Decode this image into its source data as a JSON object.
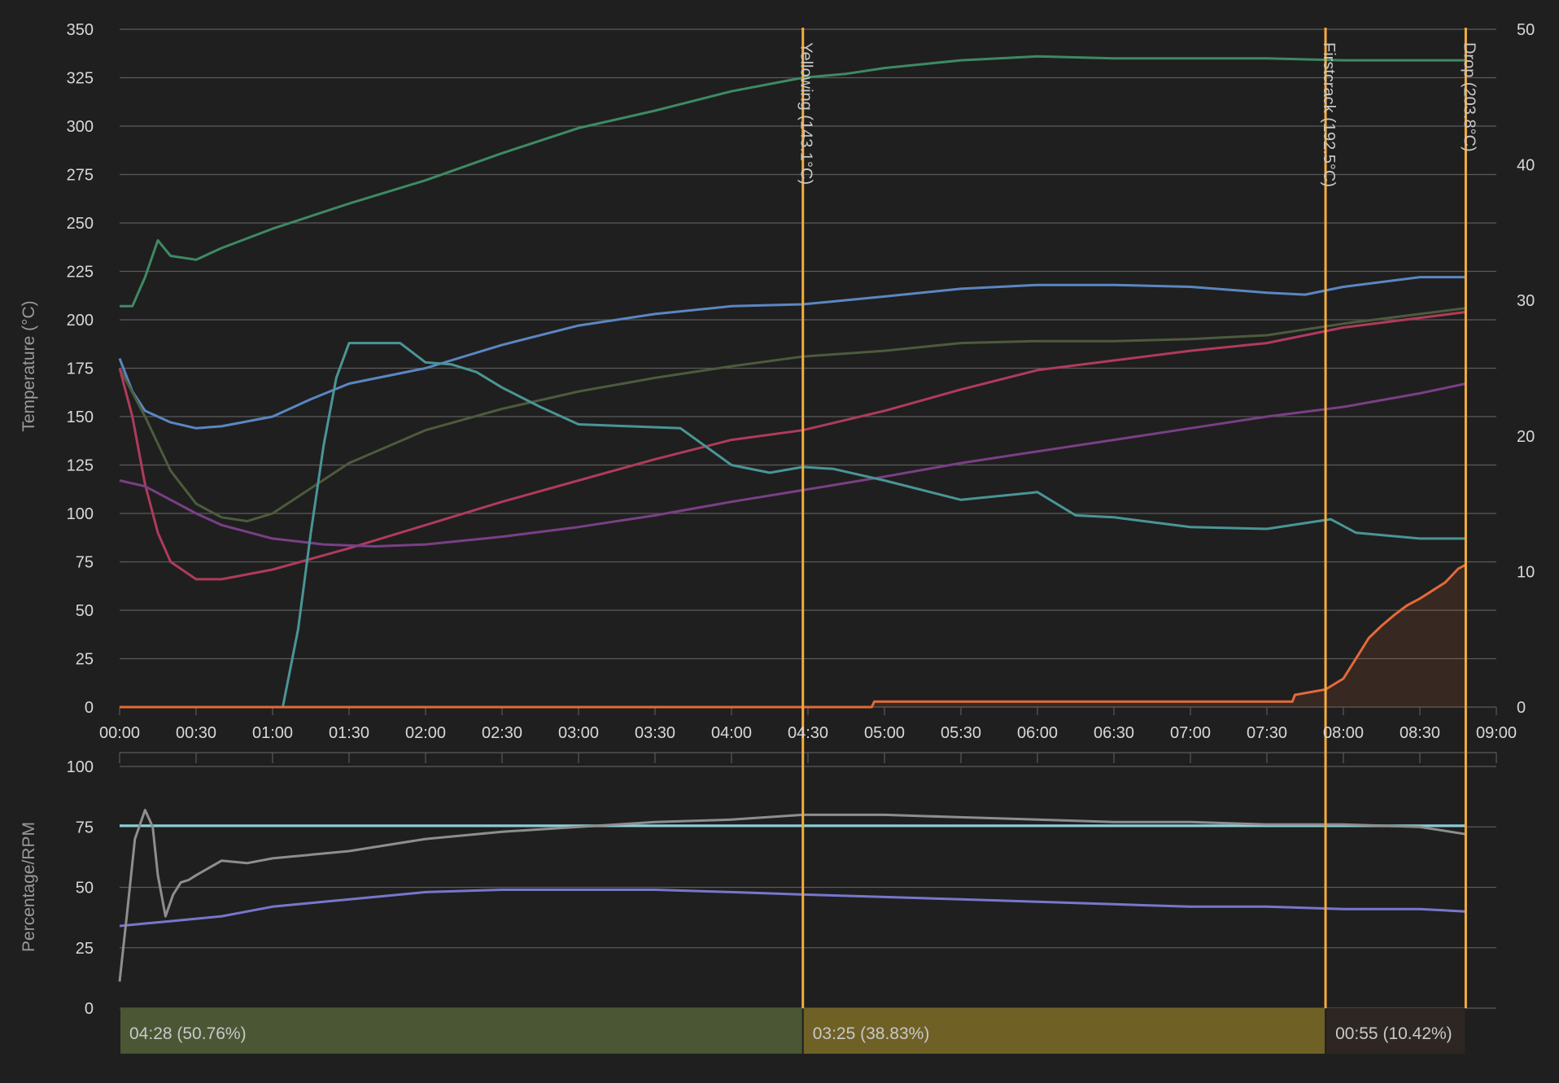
{
  "chart_data": [
    {
      "type": "line",
      "ylabel": "Temperature (°C)",
      "x_unit": "mm:ss",
      "xlim": [
        "00:00",
        "09:00"
      ],
      "ylim": [
        0,
        350
      ],
      "y2lim": [
        0,
        50
      ],
      "grid": true,
      "x_ticks": [
        "00:00",
        "00:30",
        "01:00",
        "01:30",
        "02:00",
        "02:30",
        "03:00",
        "03:30",
        "04:00",
        "04:30",
        "05:00",
        "05:30",
        "06:00",
        "06:30",
        "07:00",
        "07:30",
        "08:00",
        "08:30",
        "09:00"
      ],
      "y_ticks": [
        0,
        25,
        50,
        75,
        100,
        125,
        150,
        175,
        200,
        225,
        250,
        275,
        300,
        325,
        350
      ],
      "y2_ticks": [
        0,
        10,
        20,
        30,
        40,
        50
      ],
      "events": [
        {
          "time": "04:28",
          "label": "Yellowing (143.1°C)"
        },
        {
          "time": "07:53",
          "label": "Firstcrack (192.5°C)"
        },
        {
          "time": "08:48",
          "label": "Drop (203.8°C)"
        }
      ],
      "series": [
        {
          "color": "#3e8a63",
          "axis": "left",
          "x": [
            "00:00",
            "00:05",
            "00:10",
            "00:15",
            "00:20",
            "00:30",
            "00:40",
            "01:00",
            "01:30",
            "02:00",
            "02:30",
            "03:00",
            "03:30",
            "04:00",
            "04:28",
            "04:45",
            "05:00",
            "05:30",
            "06:00",
            "06:30",
            "07:00",
            "07:30",
            "08:00",
            "08:30",
            "08:48"
          ],
          "values": [
            207,
            207,
            222,
            241,
            233,
            231,
            237,
            247,
            260,
            272,
            286,
            299,
            308,
            318,
            325,
            327,
            330,
            334,
            336,
            335,
            335,
            335,
            334,
            334,
            334
          ]
        },
        {
          "color": "#5a87c2",
          "axis": "left",
          "x": [
            "00:00",
            "00:05",
            "00:10",
            "00:20",
            "00:30",
            "00:40",
            "01:00",
            "01:15",
            "01:30",
            "02:00",
            "02:30",
            "03:00",
            "03:30",
            "04:00",
            "04:28",
            "05:00",
            "05:30",
            "06:00",
            "06:30",
            "07:00",
            "07:30",
            "07:45",
            "08:00",
            "08:30",
            "08:48"
          ],
          "values": [
            180,
            163,
            153,
            147,
            144,
            145,
            150,
            159,
            167,
            175,
            187,
            197,
            203,
            207,
            208,
            212,
            216,
            218,
            218,
            217,
            214,
            213,
            217,
            222,
            222
          ]
        },
        {
          "color": "#4d5b3c",
          "axis": "left",
          "x": [
            "00:00",
            "00:10",
            "00:20",
            "00:30",
            "00:40",
            "00:50",
            "01:00",
            "01:15",
            "01:30",
            "02:00",
            "02:30",
            "03:00",
            "03:30",
            "04:00",
            "04:28",
            "05:00",
            "05:30",
            "06:00",
            "06:30",
            "07:00",
            "07:30",
            "08:00",
            "08:30",
            "08:48"
          ],
          "values": [
            175,
            150,
            122,
            105,
            98,
            96,
            100,
            113,
            126,
            143,
            154,
            163,
            170,
            176,
            181,
            184,
            188,
            189,
            189,
            190,
            192,
            198,
            203,
            206
          ]
        },
        {
          "color": "#b03b5c",
          "axis": "left",
          "x": [
            "00:00",
            "00:05",
            "00:10",
            "00:15",
            "00:20",
            "00:30",
            "00:40",
            "01:00",
            "01:30",
            "02:00",
            "02:30",
            "03:00",
            "03:30",
            "04:00",
            "04:28",
            "05:00",
            "05:30",
            "06:00",
            "06:30",
            "07:00",
            "07:30",
            "08:00",
            "08:30",
            "08:48"
          ],
          "values": [
            175,
            150,
            115,
            90,
            75,
            66,
            66,
            71,
            82,
            94,
            106,
            117,
            128,
            138,
            143,
            153,
            164,
            174,
            179,
            184,
            188,
            196,
            201,
            204
          ]
        },
        {
          "color": "#7a3f86",
          "axis": "left",
          "x": [
            "00:00",
            "00:10",
            "00:20",
            "00:30",
            "00:40",
            "01:00",
            "01:20",
            "01:40",
            "02:00",
            "02:30",
            "03:00",
            "03:30",
            "04:00",
            "04:28",
            "05:00",
            "05:30",
            "06:00",
            "06:30",
            "07:00",
            "07:30",
            "08:00",
            "08:30",
            "08:48"
          ],
          "values": [
            117,
            114,
            107,
            100,
            94,
            87,
            84,
            83,
            84,
            88,
            93,
            99,
            106,
            112,
            119,
            126,
            132,
            138,
            144,
            150,
            155,
            162,
            167
          ]
        },
        {
          "color": "#4a9596",
          "axis": "left",
          "x": [
            "01:04",
            "01:10",
            "01:15",
            "01:20",
            "01:25",
            "01:30",
            "01:40",
            "01:50",
            "02:00",
            "02:10",
            "02:20",
            "02:30",
            "02:45",
            "03:00",
            "03:20",
            "03:40",
            "04:00",
            "04:15",
            "04:28",
            "04:40",
            "05:00",
            "05:30",
            "06:00",
            "06:15",
            "06:30",
            "07:00",
            "07:30",
            "07:45",
            "07:55",
            "08:05",
            "08:30",
            "08:48"
          ],
          "values": [
            0,
            40,
            90,
            135,
            170,
            188,
            188,
            188,
            178,
            177,
            173,
            165,
            155,
            146,
            145,
            144,
            125,
            121,
            124,
            123,
            117,
            107,
            111,
            99,
            98,
            93,
            92,
            95,
            97,
            90,
            87,
            87
          ]
        },
        {
          "color": "#e36a3a",
          "axis": "right",
          "x": [
            "00:00",
            "04:55",
            "04:56",
            "07:30",
            "07:31",
            "07:40",
            "07:41",
            "07:53",
            "08:00",
            "08:05",
            "08:10",
            "08:15",
            "08:20",
            "08:25",
            "08:30",
            "08:35",
            "08:40",
            "08:45",
            "08:48"
          ],
          "values": [
            0,
            0,
            0.4,
            0.4,
            0.4,
            0.4,
            0.9,
            1.3,
            2.1,
            3.6,
            5.1,
            6.0,
            6.8,
            7.5,
            8.0,
            8.6,
            9.2,
            10.2,
            10.5
          ]
        }
      ]
    },
    {
      "type": "line",
      "ylabel": "Percentage/RPM",
      "ylim": [
        0,
        100
      ],
      "y_ticks": [
        0,
        25,
        50,
        75,
        100
      ],
      "grid": true,
      "series": [
        {
          "color": "#89cfd8",
          "x": [
            "00:00",
            "08:48"
          ],
          "values": [
            75.5,
            75.5
          ]
        },
        {
          "color": "#7777cc",
          "x": [
            "00:00",
            "00:10",
            "00:20",
            "00:30",
            "00:40",
            "00:50",
            "01:00",
            "01:10",
            "01:20",
            "01:40",
            "02:00",
            "02:30",
            "03:00",
            "03:30",
            "04:00",
            "04:28",
            "05:00",
            "05:30",
            "06:00",
            "06:30",
            "07:00",
            "07:30",
            "08:00",
            "08:30",
            "08:48"
          ],
          "values": [
            34,
            35,
            36,
            37,
            38,
            40,
            42,
            43,
            44,
            46,
            48,
            49,
            49,
            49,
            48,
            47,
            46,
            45,
            44,
            43,
            42,
            42,
            41,
            41,
            40
          ]
        },
        {
          "color": "#8e8e8e",
          "x": [
            "00:00",
            "00:03",
            "00:06",
            "00:10",
            "00:13",
            "00:15",
            "00:18",
            "00:21",
            "00:24",
            "00:27",
            "00:30",
            "00:35",
            "00:40",
            "00:50",
            "01:00",
            "01:30",
            "02:00",
            "02:30",
            "03:00",
            "03:30",
            "04:00",
            "04:28",
            "05:00",
            "05:30",
            "06:00",
            "06:30",
            "07:00",
            "07:30",
            "08:00",
            "08:30",
            "08:48"
          ],
          "values": [
            11,
            40,
            70,
            82,
            75,
            55,
            38,
            47,
            52,
            53,
            55,
            58,
            61,
            60,
            62,
            65,
            70,
            73,
            75,
            77,
            78,
            80,
            80,
            79,
            78,
            77,
            77,
            76,
            76,
            75,
            72
          ]
        }
      ]
    }
  ],
  "phases": [
    {
      "label": "04:28 (50.76%)",
      "start": "00:00",
      "end": "04:28",
      "color": "#4a5634"
    },
    {
      "label": "03:25 (38.83%)",
      "start": "04:28",
      "end": "07:53",
      "color": "#6f6126"
    },
    {
      "label": "00:55 (10.42%)",
      "start": "07:53",
      "end": "08:48",
      "color": "#2e2623"
    }
  ],
  "colors": {
    "background": "#1f1f1f",
    "grid": "#5a5a5a",
    "axis_text": "#d8d8d8",
    "label_text": "#9a9a9a",
    "event_line": "#f5ac3c"
  }
}
